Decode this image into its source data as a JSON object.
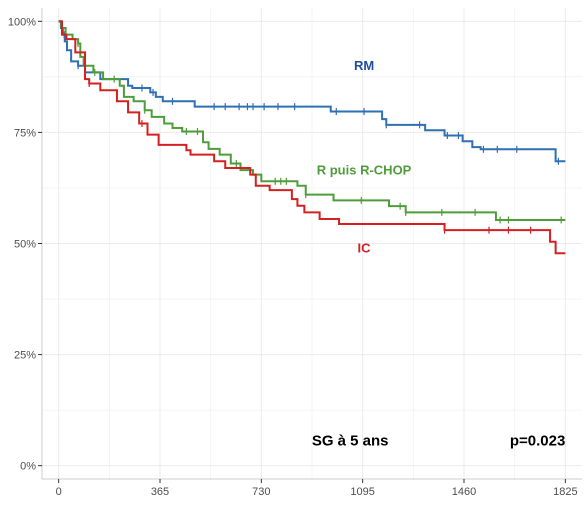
{
  "chart_data": {
    "type": "line",
    "step": true,
    "xlabel": "",
    "ylabel": "",
    "xlim": [
      -60,
      1885
    ],
    "ylim": [
      -0.03,
      1.03
    ],
    "x_ticks": [
      0,
      365,
      730,
      1095,
      1460,
      1825
    ],
    "x_tick_labels": [
      "0",
      "365",
      "730",
      "1095",
      "1460",
      "1825"
    ],
    "y_ticks": [
      0,
      0.25,
      0.5,
      0.75,
      1.0
    ],
    "y_tick_labels": [
      "0%",
      "25%",
      "50%",
      "75%",
      "100%"
    ],
    "grid": true,
    "background": "#ffffff",
    "grid_color": "#ebebeb",
    "series": [
      {
        "name": "RM",
        "color": "#2f6fb3",
        "label_color": "#1f4e9c",
        "label_pos": [
          1100,
          0.89
        ],
        "points": [
          [
            0,
            1.0
          ],
          [
            8,
            0.985
          ],
          [
            15,
            0.97
          ],
          [
            22,
            0.955
          ],
          [
            30,
            0.935
          ],
          [
            45,
            0.91
          ],
          [
            70,
            0.9
          ],
          [
            95,
            0.885
          ],
          [
            150,
            0.87
          ],
          [
            250,
            0.855
          ],
          [
            265,
            0.85
          ],
          [
            330,
            0.84
          ],
          [
            350,
            0.83
          ],
          [
            375,
            0.82
          ],
          [
            490,
            0.808
          ],
          [
            840,
            0.808
          ],
          [
            980,
            0.797
          ],
          [
            1165,
            0.78
          ],
          [
            1180,
            0.767
          ],
          [
            1320,
            0.755
          ],
          [
            1390,
            0.743
          ],
          [
            1455,
            0.73
          ],
          [
            1490,
            0.717
          ],
          [
            1490,
            0.717
          ],
          [
            1520,
            0.712
          ],
          [
            1760,
            0.712
          ],
          [
            1790,
            0.685
          ],
          [
            1825,
            0.685
          ]
        ],
        "censor_x": [
          20,
          70,
          300,
          340,
          410,
          560,
          600,
          650,
          680,
          700,
          740,
          790,
          850,
          1000,
          1100,
          1180,
          1300,
          1400,
          1440,
          1530,
          1580,
          1650,
          1800
        ]
      },
      {
        "name": "R puis R-CHOP",
        "color": "#4e9d3a",
        "label_color": "#4e9d3a",
        "label_pos": [
          1100,
          0.655
        ],
        "points": [
          [
            0,
            1.0
          ],
          [
            10,
            0.985
          ],
          [
            25,
            0.97
          ],
          [
            50,
            0.96
          ],
          [
            70,
            0.95
          ],
          [
            78,
            0.92
          ],
          [
            90,
            0.9
          ],
          [
            125,
            0.885
          ],
          [
            160,
            0.87
          ],
          [
            220,
            0.855
          ],
          [
            235,
            0.83
          ],
          [
            270,
            0.82
          ],
          [
            310,
            0.8
          ],
          [
            335,
            0.785
          ],
          [
            380,
            0.77
          ],
          [
            410,
            0.76
          ],
          [
            445,
            0.752
          ],
          [
            520,
            0.728
          ],
          [
            540,
            0.713
          ],
          [
            580,
            0.7
          ],
          [
            620,
            0.68
          ],
          [
            655,
            0.665
          ],
          [
            700,
            0.655
          ],
          [
            730,
            0.64
          ],
          [
            860,
            0.63
          ],
          [
            890,
            0.61
          ],
          [
            990,
            0.597
          ],
          [
            1190,
            0.584
          ],
          [
            1250,
            0.57
          ],
          [
            1575,
            0.553
          ],
          [
            1825,
            0.553
          ]
        ],
        "censor_x": [
          70,
          130,
          200,
          310,
          460,
          500,
          640,
          780,
          800,
          820,
          890,
          1090,
          1230,
          1250,
          1380,
          1500,
          1590,
          1620,
          1810
        ]
      },
      {
        "name": "IC",
        "color": "#d42020",
        "label_color": "#d42020",
        "label_pos": [
          1100,
          0.48
        ],
        "points": [
          [
            0,
            1.0
          ],
          [
            12,
            0.97
          ],
          [
            28,
            0.96
          ],
          [
            60,
            0.93
          ],
          [
            95,
            0.87
          ],
          [
            110,
            0.86
          ],
          [
            150,
            0.845
          ],
          [
            210,
            0.82
          ],
          [
            250,
            0.795
          ],
          [
            290,
            0.77
          ],
          [
            320,
            0.745
          ],
          [
            360,
            0.722
          ],
          [
            460,
            0.71
          ],
          [
            475,
            0.7
          ],
          [
            560,
            0.685
          ],
          [
            600,
            0.67
          ],
          [
            690,
            0.655
          ],
          [
            710,
            0.63
          ],
          [
            760,
            0.62
          ],
          [
            840,
            0.6
          ],
          [
            860,
            0.585
          ],
          [
            885,
            0.57
          ],
          [
            940,
            0.555
          ],
          [
            1010,
            0.544
          ],
          [
            1390,
            0.53
          ],
          [
            1770,
            0.504
          ],
          [
            1790,
            0.478
          ],
          [
            1825,
            0.478
          ]
        ],
        "censor_x": [
          110,
          300,
          1390,
          1550,
          1620,
          1700
        ]
      }
    ],
    "annotations": [
      {
        "text": "SG à 5 ans",
        "x": 1050,
        "y": 0.045
      },
      {
        "text": "p=0.023",
        "x": 1825,
        "y": 0.045
      }
    ]
  }
}
